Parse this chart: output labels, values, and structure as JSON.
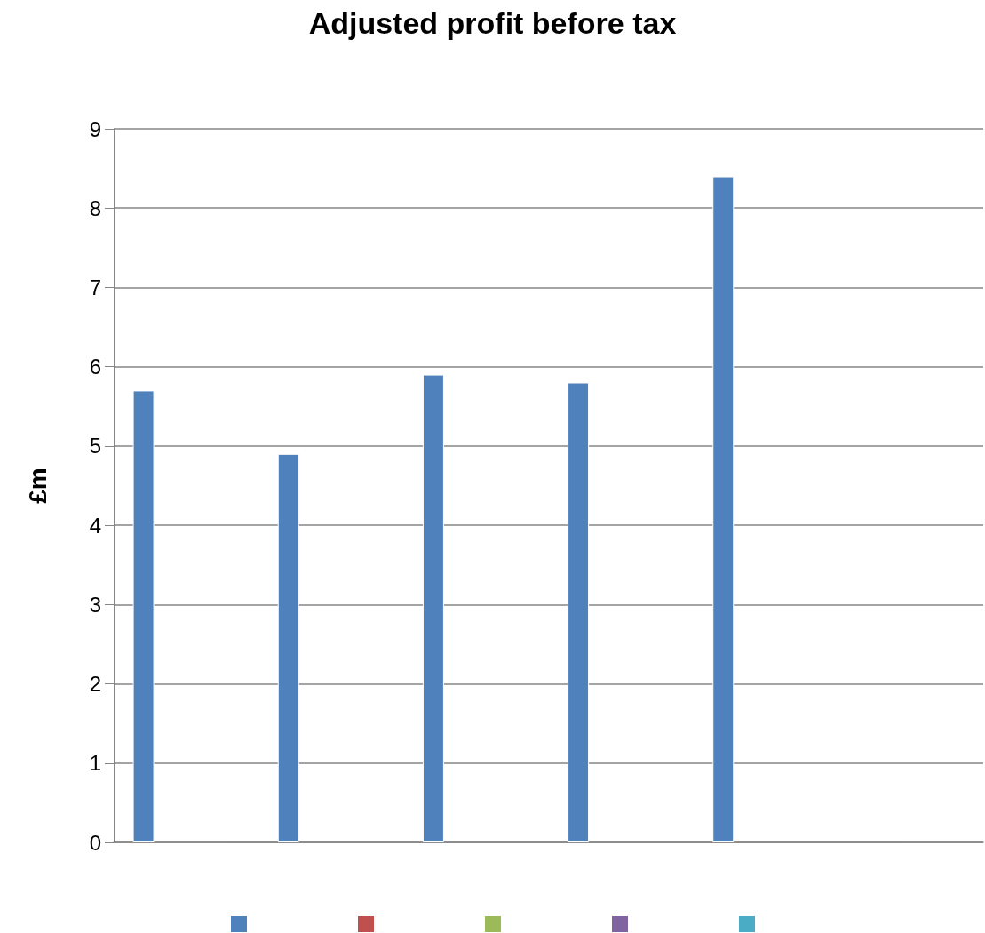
{
  "chart_data": {
    "type": "bar",
    "title": "Adjusted profit before tax",
    "ylabel": "£m",
    "categories": [
      null,
      null,
      null,
      null,
      null,
      null
    ],
    "series": [
      {
        "color": "#4f81bd",
        "values": [
          5.7,
          4.9,
          5.9,
          5.8,
          8.4,
          null
        ]
      },
      {
        "color": "#c0504d",
        "values": [
          null,
          null,
          null,
          null,
          null,
          null
        ]
      },
      {
        "color": "#9bbb59",
        "values": [
          null,
          null,
          null,
          null,
          null,
          null
        ]
      },
      {
        "color": "#8064a2",
        "values": [
          null,
          null,
          null,
          null,
          null,
          null
        ]
      },
      {
        "color": "#4bacc6",
        "values": [
          null,
          null,
          null,
          null,
          null,
          null
        ]
      }
    ],
    "ylim": [
      0,
      9
    ],
    "yticks": [
      0,
      1,
      2,
      3,
      4,
      5,
      6,
      7,
      8,
      9
    ],
    "grid": "y"
  }
}
